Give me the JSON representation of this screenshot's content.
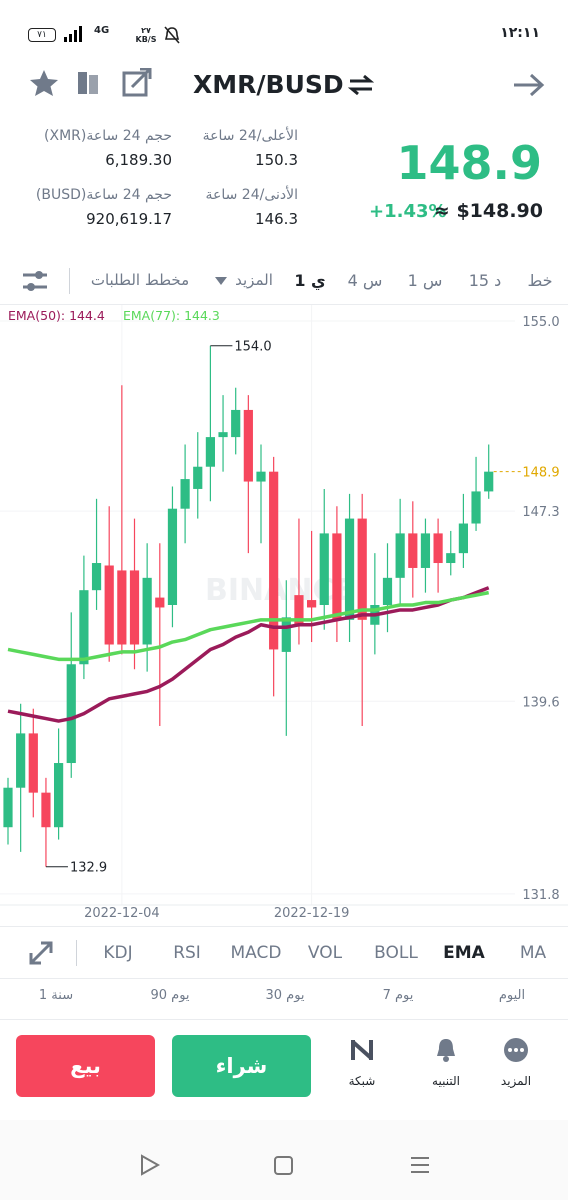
{
  "status_bar": {
    "battery": "٧١",
    "network": "4G",
    "speed": "٢٧ KB/S",
    "time": "١٢:١١"
  },
  "header": {
    "title": "XMR/BUSD"
  },
  "ticker": {
    "price": "148.9",
    "change": "+1.43%",
    "usd_price": "≈ $148.90",
    "stats": [
      {
        "label": "الأعلى/24 ساعة",
        "value": "150.3"
      },
      {
        "label": "حجم 24 ساعة(XMR)",
        "value": "6,189.30"
      },
      {
        "label": "الأدنى/24 ساعة",
        "value": "146.3"
      },
      {
        "label": "حجم 24 ساعة(BUSD)",
        "value": "920,619.17"
      }
    ]
  },
  "intervals": [
    "خط",
    "15 د",
    "1 س",
    "4 س",
    "1 ي",
    "المزيد",
    "مخطط الطلبات"
  ],
  "chart_data": {
    "type": "candlestick",
    "categories": [
      null,
      null,
      null,
      null,
      null,
      null,
      null,
      null,
      null,
      "2022-12-04",
      null,
      null,
      null,
      null,
      null,
      null,
      null,
      null,
      null,
      null,
      null,
      null,
      null,
      null,
      "2022-12-19",
      null,
      null,
      null,
      null,
      null,
      null,
      null,
      null,
      null,
      null,
      null,
      null,
      null,
      null
    ],
    "open": [
      134.5,
      136.1,
      138.3,
      135.9,
      134.5,
      137.1,
      141.1,
      144.1,
      145.1,
      144.9,
      144.9,
      141.9,
      143.8,
      143.5,
      147.4,
      148.2,
      149.1,
      150.3,
      150.3,
      151.4,
      148.5,
      148.9,
      141.6,
      143.9,
      143.7,
      143.5,
      146.4,
      142.9,
      147.0,
      142.7,
      143.5,
      144.6,
      146.4,
      145.0,
      146.4,
      145.2,
      145.6,
      146.8,
      148.1
    ],
    "high": [
      136.5,
      139.5,
      139.3,
      136.5,
      138.5,
      143.2,
      145.5,
      147.8,
      147.5,
      152.4,
      147.0,
      146.0,
      146.0,
      148.3,
      150.0,
      150.5,
      154.0,
      152.0,
      152.3,
      152.0,
      150.0,
      149.5,
      144.5,
      147.0,
      146.5,
      148.2,
      147.5,
      148.0,
      148.0,
      145.6,
      146.0,
      147.8,
      147.7,
      147.0,
      147.0,
      146.5,
      148.0,
      149.5,
      150.0
    ],
    "low": [
      133.8,
      133.5,
      134.9,
      132.9,
      134.0,
      136.5,
      140.5,
      143.3,
      141.2,
      141.5,
      140.9,
      140.8,
      138.6,
      142.6,
      146.0,
      147.0,
      147.7,
      148.9,
      149.6,
      145.6,
      146.0,
      139.8,
      138.2,
      141.9,
      142.0,
      142.5,
      142.0,
      142.0,
      138.6,
      141.5,
      142.4,
      143.5,
      143.8,
      144.0,
      144.0,
      144.7,
      145.0,
      146.5,
      147.8
    ],
    "close": [
      136.1,
      138.3,
      135.9,
      134.5,
      137.1,
      141.1,
      144.1,
      145.2,
      141.9,
      141.9,
      141.9,
      144.6,
      143.4,
      147.4,
      148.6,
      149.1,
      150.3,
      150.5,
      151.4,
      148.5,
      148.9,
      141.7,
      143.0,
      142.7,
      143.4,
      146.4,
      142.9,
      147.0,
      142.9,
      143.5,
      144.6,
      146.4,
      145.0,
      146.4,
      145.2,
      145.6,
      146.8,
      148.1,
      148.9
    ],
    "up_color": "#2ebd85",
    "down_color": "#f6465d",
    "lines": [
      {
        "name": "EMA(50): 144.4",
        "color": "#9b1b5a",
        "values": [
          139.2,
          139.1,
          139.0,
          138.9,
          138.8,
          138.9,
          139.1,
          139.4,
          139.7,
          139.8,
          139.9,
          140.0,
          140.2,
          140.5,
          140.9,
          141.3,
          141.7,
          141.9,
          142.2,
          142.4,
          142.7,
          142.6,
          142.6,
          142.7,
          142.7,
          142.8,
          142.9,
          143.0,
          143.1,
          143.1,
          143.2,
          143.3,
          143.3,
          143.4,
          143.5,
          143.7,
          143.8,
          144.0,
          144.2
        ]
      },
      {
        "name": "EMA(77): 144.3",
        "color": "#5ad85a",
        "values": [
          141.7,
          141.6,
          141.5,
          141.4,
          141.3,
          141.3,
          141.3,
          141.4,
          141.5,
          141.6,
          141.6,
          141.7,
          141.8,
          142.0,
          142.1,
          142.3,
          142.5,
          142.6,
          142.7,
          142.8,
          142.9,
          142.9,
          142.9,
          142.9,
          142.9,
          143.0,
          143.1,
          143.2,
          143.3,
          143.3,
          143.4,
          143.5,
          143.5,
          143.6,
          143.6,
          143.7,
          143.8,
          143.9,
          144.0
        ]
      }
    ],
    "ylim": [
      131.35,
      155.65
    ],
    "yticks": [
      {
        "value": 155,
        "label": "155.0"
      },
      147.3,
      139.6,
      131.8
    ],
    "grid": true,
    "annotations": [
      {
        "value": 154,
        "label": "154.0",
        "kind": "high"
      },
      {
        "value": 132.9,
        "label": "132.9",
        "kind": "low"
      }
    ],
    "last_price": 148.9,
    "last_price_color": "#e0a800",
    "watermark": "BINANCE"
  },
  "indicators": [
    "MA",
    "EMA",
    "BOLL",
    "VOL",
    "MACD",
    "RSI",
    "KDJ"
  ],
  "ranges": [
    "اليوم",
    "7 يوم",
    "30 يوم",
    "90 يوم",
    "1 سنة"
  ],
  "actions": {
    "sell": "بيع",
    "buy": "شراء",
    "grid": "شبكة",
    "alert": "التنبيه",
    "more": "المزيد"
  }
}
